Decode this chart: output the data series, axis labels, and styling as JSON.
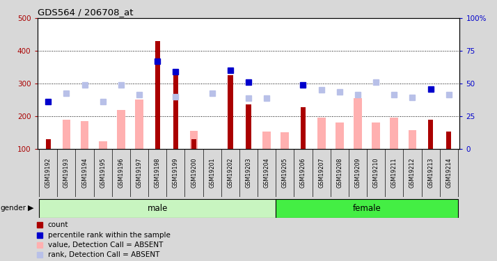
{
  "title": "GDS564 / 206708_at",
  "samples": [
    "GSM19192",
    "GSM19193",
    "GSM19194",
    "GSM19195",
    "GSM19196",
    "GSM19197",
    "GSM19198",
    "GSM19199",
    "GSM19200",
    "GSM19201",
    "GSM19202",
    "GSM19203",
    "GSM19204",
    "GSM19205",
    "GSM19206",
    "GSM19207",
    "GSM19208",
    "GSM19209",
    "GSM19210",
    "GSM19211",
    "GSM19212",
    "GSM19213",
    "GSM19214"
  ],
  "count": [
    130,
    null,
    null,
    null,
    null,
    null,
    430,
    330,
    130,
    null,
    325,
    237,
    null,
    null,
    228,
    null,
    null,
    null,
    null,
    null,
    null,
    190,
    153
  ],
  "percentile_rank": [
    245,
    null,
    null,
    null,
    null,
    null,
    368,
    336,
    null,
    null,
    340,
    305,
    null,
    null,
    295,
    null,
    null,
    null,
    null,
    null,
    null,
    282,
    null
  ],
  "value_absent": [
    null,
    190,
    185,
    122,
    220,
    250,
    null,
    null,
    155,
    null,
    null,
    null,
    152,
    150,
    null,
    195,
    180,
    255,
    180,
    195,
    158,
    null,
    null
  ],
  "rank_absent": [
    null,
    270,
    295,
    245,
    295,
    265,
    null,
    260,
    null,
    270,
    null,
    255,
    255,
    null,
    null,
    280,
    275,
    265,
    305,
    265,
    258,
    null,
    265
  ],
  "gender_groups": [
    {
      "label": "male",
      "start": 0,
      "end": 13
    },
    {
      "label": "female",
      "start": 13,
      "end": 23
    }
  ],
  "ylim_left": [
    100,
    500
  ],
  "ylim_right": [
    0,
    100
  ],
  "yticks_left": [
    100,
    200,
    300,
    400,
    500
  ],
  "yticks_right": [
    0,
    25,
    50,
    75,
    100
  ],
  "bg_color": "#d8d8d8",
  "plot_bg": "#ffffff",
  "count_color": "#aa0000",
  "percentile_color": "#0000cc",
  "value_absent_color": "#ffb0b0",
  "rank_absent_color": "#b8c0e8",
  "male_color": "#c8f5c0",
  "female_color": "#44ee44",
  "grid_color": "#000000",
  "legend_items": [
    {
      "color": "#aa0000",
      "label": "count"
    },
    {
      "color": "#0000cc",
      "label": "percentile rank within the sample"
    },
    {
      "color": "#ffb0b0",
      "label": "value, Detection Call = ABSENT"
    },
    {
      "color": "#b8c0e8",
      "label": "rank, Detection Call = ABSENT"
    }
  ]
}
